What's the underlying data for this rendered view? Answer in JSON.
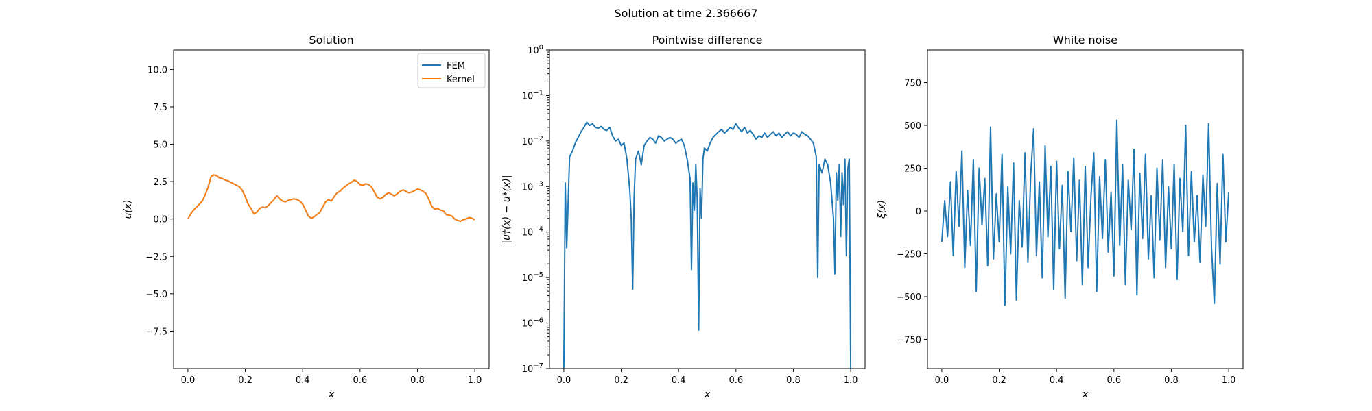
{
  "figure": {
    "title": "Solution at time 2.366667"
  },
  "colors": {
    "fem": "#1f77b4",
    "kernel": "#ff7f0e",
    "noise": "#1f77b4",
    "diff": "#1f77b4"
  },
  "chart_data": [
    {
      "type": "line",
      "title": "Solution",
      "xlabel": "x",
      "ylabel": "u(x)",
      "xlim": [
        -0.05,
        1.05
      ],
      "ylim": [
        -10.0,
        11.3
      ],
      "xticks": [
        "0.0",
        "0.2",
        "0.4",
        "0.6",
        "0.8",
        "1.0"
      ],
      "yticks": [
        "−7.5",
        "−5.0",
        "−2.5",
        "0.0",
        "2.5",
        "5.0",
        "7.5",
        "10.0"
      ],
      "ytick_values": [
        -7.5,
        -5.0,
        -2.5,
        0.0,
        2.5,
        5.0,
        7.5,
        10.0
      ],
      "legend": {
        "placement": "top-right",
        "entries": [
          "FEM",
          "Kernel"
        ]
      },
      "series": [
        {
          "name": "FEM",
          "x": [
            0.0,
            0.01,
            0.02,
            0.03,
            0.04,
            0.05,
            0.06,
            0.07,
            0.08,
            0.09,
            0.1,
            0.11,
            0.12,
            0.13,
            0.14,
            0.15,
            0.16,
            0.17,
            0.18,
            0.19,
            0.2,
            0.21,
            0.22,
            0.23,
            0.24,
            0.25,
            0.26,
            0.27,
            0.28,
            0.29,
            0.3,
            0.31,
            0.32,
            0.33,
            0.34,
            0.35,
            0.36,
            0.37,
            0.38,
            0.39,
            0.4,
            0.41,
            0.42,
            0.43,
            0.44,
            0.45,
            0.46,
            0.47,
            0.48,
            0.49,
            0.5,
            0.51,
            0.52,
            0.53,
            0.54,
            0.55,
            0.56,
            0.57,
            0.58,
            0.59,
            0.6,
            0.61,
            0.62,
            0.63,
            0.64,
            0.65,
            0.66,
            0.67,
            0.68,
            0.69,
            0.7,
            0.71,
            0.72,
            0.73,
            0.74,
            0.75,
            0.76,
            0.77,
            0.78,
            0.79,
            0.8,
            0.81,
            0.82,
            0.83,
            0.84,
            0.85,
            0.86,
            0.87,
            0.88,
            0.89,
            0.9,
            0.91,
            0.92,
            0.93,
            0.94,
            0.95,
            0.96,
            0.97,
            0.98,
            0.99,
            1.0
          ],
          "y": [
            0.0,
            0.35,
            0.6,
            0.8,
            1.0,
            1.2,
            1.6,
            2.1,
            2.8,
            2.95,
            2.9,
            2.75,
            2.7,
            2.6,
            2.55,
            2.45,
            2.35,
            2.25,
            2.15,
            1.9,
            1.5,
            1.0,
            0.7,
            0.35,
            0.45,
            0.7,
            0.8,
            0.75,
            0.9,
            1.1,
            1.3,
            1.55,
            1.35,
            1.2,
            1.15,
            1.25,
            1.3,
            1.35,
            1.3,
            1.2,
            1.0,
            0.6,
            0.2,
            0.05,
            0.15,
            0.3,
            0.45,
            0.8,
            1.15,
            1.3,
            1.2,
            1.5,
            1.75,
            1.85,
            2.05,
            2.2,
            2.35,
            2.45,
            2.6,
            2.5,
            2.3,
            2.25,
            2.35,
            2.3,
            2.15,
            1.8,
            1.45,
            1.35,
            1.45,
            1.65,
            1.75,
            1.65,
            1.55,
            1.7,
            1.85,
            1.95,
            1.85,
            1.75,
            1.8,
            1.9,
            2.0,
            1.95,
            1.85,
            1.7,
            1.3,
            0.85,
            0.65,
            0.7,
            0.6,
            0.55,
            0.3,
            0.25,
            0.2,
            0.0,
            -0.1,
            -0.15,
            -0.05,
            0.0,
            0.1,
            0.05,
            -0.05
          ]
        },
        {
          "name": "Kernel",
          "x": [
            0.0,
            0.01,
            0.02,
            0.03,
            0.04,
            0.05,
            0.06,
            0.07,
            0.08,
            0.09,
            0.1,
            0.11,
            0.12,
            0.13,
            0.14,
            0.15,
            0.16,
            0.17,
            0.18,
            0.19,
            0.2,
            0.21,
            0.22,
            0.23,
            0.24,
            0.25,
            0.26,
            0.27,
            0.28,
            0.29,
            0.3,
            0.31,
            0.32,
            0.33,
            0.34,
            0.35,
            0.36,
            0.37,
            0.38,
            0.39,
            0.4,
            0.41,
            0.42,
            0.43,
            0.44,
            0.45,
            0.46,
            0.47,
            0.48,
            0.49,
            0.5,
            0.51,
            0.52,
            0.53,
            0.54,
            0.55,
            0.56,
            0.57,
            0.58,
            0.59,
            0.6,
            0.61,
            0.62,
            0.63,
            0.64,
            0.65,
            0.66,
            0.67,
            0.68,
            0.69,
            0.7,
            0.71,
            0.72,
            0.73,
            0.74,
            0.75,
            0.76,
            0.77,
            0.78,
            0.79,
            0.8,
            0.81,
            0.82,
            0.83,
            0.84,
            0.85,
            0.86,
            0.87,
            0.88,
            0.89,
            0.9,
            0.91,
            0.92,
            0.93,
            0.94,
            0.95,
            0.96,
            0.97,
            0.98,
            0.99,
            1.0
          ],
          "y": [
            0.0,
            0.35,
            0.6,
            0.8,
            1.0,
            1.2,
            1.6,
            2.1,
            2.8,
            2.95,
            2.9,
            2.75,
            2.7,
            2.6,
            2.55,
            2.45,
            2.35,
            2.25,
            2.15,
            1.9,
            1.5,
            1.0,
            0.7,
            0.35,
            0.45,
            0.7,
            0.8,
            0.75,
            0.9,
            1.1,
            1.3,
            1.55,
            1.35,
            1.2,
            1.15,
            1.25,
            1.3,
            1.35,
            1.3,
            1.2,
            1.0,
            0.6,
            0.2,
            0.05,
            0.15,
            0.3,
            0.45,
            0.8,
            1.15,
            1.3,
            1.2,
            1.5,
            1.75,
            1.85,
            2.05,
            2.2,
            2.35,
            2.45,
            2.6,
            2.5,
            2.3,
            2.25,
            2.35,
            2.3,
            2.15,
            1.8,
            1.45,
            1.35,
            1.45,
            1.65,
            1.75,
            1.65,
            1.55,
            1.7,
            1.85,
            1.95,
            1.85,
            1.75,
            1.8,
            1.9,
            2.0,
            1.95,
            1.85,
            1.7,
            1.3,
            0.85,
            0.65,
            0.7,
            0.6,
            0.55,
            0.3,
            0.25,
            0.2,
            0.0,
            -0.1,
            -0.15,
            -0.05,
            0.0,
            0.1,
            0.05,
            -0.05
          ]
        }
      ]
    },
    {
      "type": "line",
      "title": "Pointwise difference",
      "xlabel": "x",
      "ylabel": "|u†(x) − u*(x)|",
      "yscale": "log",
      "xlim": [
        -0.05,
        1.05
      ],
      "ylim_exp": [
        -7,
        0
      ],
      "xticks": [
        "0.0",
        "0.2",
        "0.4",
        "0.6",
        "0.8",
        "1.0"
      ],
      "ytick_mantissa": "10",
      "ytick_exponents": [
        "−7",
        "−6",
        "−5",
        "−4",
        "−3",
        "−2",
        "−1",
        "0"
      ],
      "series": [
        {
          "x": [
            0.0,
            0.005,
            0.01,
            0.02,
            0.03,
            0.04,
            0.05,
            0.06,
            0.07,
            0.08,
            0.09,
            0.1,
            0.11,
            0.12,
            0.13,
            0.14,
            0.15,
            0.16,
            0.17,
            0.18,
            0.19,
            0.2,
            0.21,
            0.22,
            0.23,
            0.235,
            0.24,
            0.245,
            0.25,
            0.26,
            0.27,
            0.28,
            0.29,
            0.3,
            0.31,
            0.32,
            0.33,
            0.34,
            0.35,
            0.36,
            0.37,
            0.38,
            0.39,
            0.4,
            0.41,
            0.42,
            0.43,
            0.44,
            0.445,
            0.45,
            0.455,
            0.46,
            0.465,
            0.47,
            0.475,
            0.48,
            0.485,
            0.49,
            0.5,
            0.51,
            0.52,
            0.53,
            0.54,
            0.55,
            0.56,
            0.57,
            0.58,
            0.59,
            0.6,
            0.61,
            0.62,
            0.63,
            0.64,
            0.65,
            0.66,
            0.67,
            0.68,
            0.69,
            0.7,
            0.71,
            0.72,
            0.73,
            0.74,
            0.75,
            0.76,
            0.77,
            0.78,
            0.79,
            0.8,
            0.81,
            0.82,
            0.83,
            0.84,
            0.85,
            0.86,
            0.87,
            0.88,
            0.885,
            0.89,
            0.9,
            0.91,
            0.92,
            0.93,
            0.94,
            0.945,
            0.95,
            0.955,
            0.96,
            0.965,
            0.97,
            0.975,
            0.98,
            0.985,
            0.99,
            0.995,
            1.0
          ],
          "y": [
            1e-07,
            0.0012,
            4.5e-05,
            0.0045,
            0.006,
            0.009,
            0.012,
            0.016,
            0.02,
            0.026,
            0.022,
            0.024,
            0.02,
            0.019,
            0.021,
            0.018,
            0.017,
            0.02,
            0.013,
            0.01,
            0.011,
            0.008,
            0.009,
            0.004,
            0.0008,
            0.0002,
            5.5e-06,
            0.0006,
            0.004,
            0.006,
            0.003,
            0.008,
            0.01,
            0.012,
            0.011,
            0.009,
            0.013,
            0.012,
            0.01,
            0.011,
            0.012,
            0.011,
            0.009,
            0.01,
            0.011,
            0.008,
            0.004,
            0.0015,
            1.5e-05,
            0.0012,
            0.0003,
            0.003,
            0.0005,
            7e-07,
            0.0009,
            0.0002,
            0.004,
            0.007,
            0.006,
            0.009,
            0.012,
            0.014,
            0.016,
            0.018,
            0.015,
            0.017,
            0.02,
            0.018,
            0.024,
            0.019,
            0.016,
            0.02,
            0.015,
            0.017,
            0.014,
            0.011,
            0.013,
            0.012,
            0.015,
            0.012,
            0.014,
            0.016,
            0.013,
            0.015,
            0.012,
            0.014,
            0.016,
            0.013,
            0.015,
            0.014,
            0.012,
            0.016,
            0.014,
            0.013,
            0.011,
            0.009,
            0.0045,
            1e-05,
            0.003,
            0.002,
            0.004,
            0.003,
            0.0012,
            0.0002,
            1.2e-05,
            0.002,
            0.0005,
            0.003,
            8e-05,
            0.002,
            0.0004,
            0.004,
            3e-05,
            0.0025,
            0.004,
            1e-07
          ]
        }
      ]
    },
    {
      "type": "line",
      "title": "White noise",
      "xlabel": "x",
      "ylabel": "ξ(x)",
      "xlim": [
        -0.05,
        1.05
      ],
      "ylim": [
        -920,
        940
      ],
      "xticks": [
        "0.0",
        "0.2",
        "0.4",
        "0.6",
        "0.8",
        "1.0"
      ],
      "yticks": [
        "−750",
        "−500",
        "−250",
        "0",
        "250",
        "500",
        "750"
      ],
      "ytick_values": [
        -750,
        -500,
        -250,
        0,
        250,
        500,
        750
      ],
      "series": [
        {
          "x": [
            0.0,
            0.01,
            0.02,
            0.03,
            0.04,
            0.05,
            0.06,
            0.07,
            0.08,
            0.09,
            0.1,
            0.11,
            0.12,
            0.13,
            0.14,
            0.15,
            0.16,
            0.17,
            0.18,
            0.19,
            0.2,
            0.21,
            0.22,
            0.23,
            0.24,
            0.25,
            0.26,
            0.27,
            0.28,
            0.29,
            0.3,
            0.31,
            0.32,
            0.33,
            0.34,
            0.35,
            0.36,
            0.37,
            0.38,
            0.39,
            0.4,
            0.41,
            0.42,
            0.43,
            0.44,
            0.45,
            0.46,
            0.47,
            0.48,
            0.49,
            0.5,
            0.51,
            0.52,
            0.53,
            0.54,
            0.55,
            0.56,
            0.57,
            0.58,
            0.59,
            0.6,
            0.61,
            0.62,
            0.63,
            0.64,
            0.65,
            0.66,
            0.67,
            0.68,
            0.69,
            0.7,
            0.71,
            0.72,
            0.73,
            0.74,
            0.75,
            0.76,
            0.77,
            0.78,
            0.79,
            0.8,
            0.81,
            0.82,
            0.83,
            0.84,
            0.85,
            0.86,
            0.87,
            0.88,
            0.89,
            0.9,
            0.91,
            0.92,
            0.93,
            0.94,
            0.95,
            0.96,
            0.97,
            0.98,
            0.99,
            1.0
          ],
          "y": [
            -180,
            60,
            -150,
            170,
            -260,
            230,
            -90,
            350,
            -330,
            120,
            -200,
            300,
            -470,
            250,
            -80,
            190,
            -320,
            490,
            -280,
            100,
            -180,
            330,
            -550,
            140,
            -250,
            280,
            -520,
            60,
            -210,
            340,
            -300,
            210,
            480,
            -260,
            170,
            -390,
            380,
            -150,
            260,
            -460,
            290,
            -220,
            150,
            -510,
            230,
            -120,
            310,
            -290,
            180,
            -430,
            260,
            -330,
            90,
            340,
            -470,
            200,
            -160,
            300,
            -240,
            110,
            -380,
            530,
            -200,
            270,
            -430,
            180,
            -110,
            360,
            -490,
            220,
            -160,
            330,
            -280,
            90,
            -390,
            250,
            -170,
            300,
            -330,
            140,
            -220,
            270,
            -400,
            190,
            -120,
            500,
            -260,
            230,
            -180,
            90,
            -300,
            210,
            -90,
            510,
            -210,
            -540,
            160,
            -310,
            330,
            -180,
            110
          ]
        }
      ]
    }
  ]
}
